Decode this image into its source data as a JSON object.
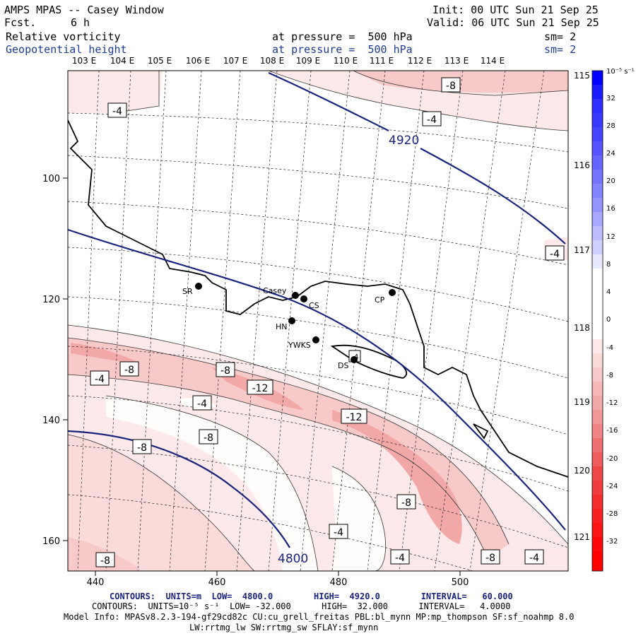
{
  "header": {
    "title": "AMPS MPAS -- Casey Window",
    "fcst_label": "Fcst.",
    "fcst_value": "6 h",
    "init": "Init: 00 UTC Sun 21 Sep 25",
    "valid": "Valid: 06 UTC Sun 21 Sep 25",
    "field1": "Relative vorticity",
    "field1_level": "at pressure =  500 hPa",
    "field1_sm": "sm= 2",
    "field2": "Geopotential height",
    "field2_level": "at pressure =  500 hPa",
    "field2_sm": "sm= 2"
  },
  "map": {
    "lon_top_labels": [
      "103 E",
      "104 E",
      "105 E",
      "106 E",
      "107 E",
      "108 E",
      "109 E",
      "110 E",
      "111 E",
      "112 E",
      "113 E",
      "114 E"
    ],
    "lon_right_labels": [
      "115 E",
      "116 E",
      "117 E",
      "118 E",
      "119 E",
      "120 E",
      "121 E"
    ],
    "x_ticks": [
      "440",
      "460",
      "480",
      "500"
    ],
    "y_ticks": [
      "100",
      "120",
      "140",
      "160"
    ],
    "stations": [
      {
        "name": "SR"
      },
      {
        "name": "Casey"
      },
      {
        "name": "CS"
      },
      {
        "name": "CP"
      },
      {
        "name": "HN"
      },
      {
        "name": "YWKS"
      },
      {
        "name": "DS"
      }
    ],
    "height_labels": [
      "4920",
      "4800"
    ],
    "vort_labels": [
      "-4",
      "-8",
      "-4",
      "-4",
      "-4",
      "-8",
      "-8",
      "-12",
      "-4",
      "-12",
      "-8",
      "-8",
      "-8",
      "-4",
      "-4",
      "-4",
      "-8",
      "-4",
      "-8"
    ]
  },
  "colorbar": {
    "unit": "10⁻⁵ s⁻¹",
    "labels": [
      "32",
      "28",
      "24",
      "20",
      "16",
      "12",
      "8",
      "4",
      "0",
      "-4",
      "-8",
      "-12",
      "-16",
      "-20",
      "-24",
      "-28",
      "-32"
    ]
  },
  "footer": {
    "line1": "CONTOURS:  UNITS=m  LOW=  4800.0        HIGH=  4920.0        INTERVAL=   60.000",
    "line2": "CONTOURS:  UNITS=10⁻⁵ s⁻¹  LOW= -32.000      HIGH=  32.000      INTERVAL=   4.0000",
    "line3": "Model Info: MPASv8.2.3-194-gf29cd82c CU:cu_grell_freitas PBL:bl_mynn MP:mp_thompson SF:sf_noahmp 8.0",
    "line4": "LW:rrtmg_lw SW:rrtmg_sw SFLAY:sf_mynn"
  }
}
